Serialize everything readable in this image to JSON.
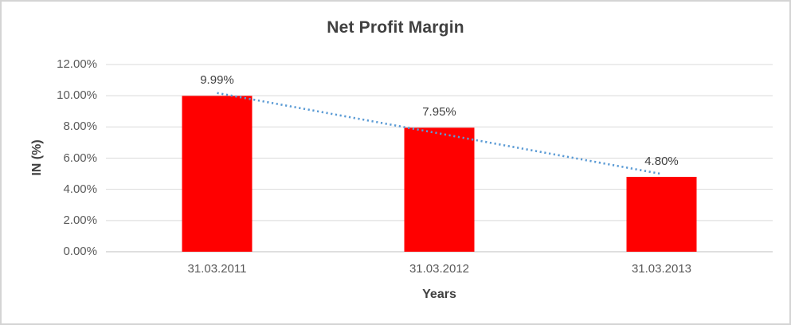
{
  "chart_data": {
    "type": "bar",
    "title": "Net Profit Margin",
    "xlabel": "Years",
    "ylabel": "IN (%)",
    "categories": [
      "31.03.2011",
      "31.03.2012",
      "31.03.2013"
    ],
    "values": [
      9.99,
      7.95,
      4.8
    ],
    "data_labels": [
      "9.99%",
      "7.95%",
      "4.80%"
    ],
    "ylim": [
      0,
      12
    ],
    "ytick_step": 2,
    "ytick_labels": [
      "0.00%",
      "2.00%",
      "4.00%",
      "6.00%",
      "8.00%",
      "10.00%",
      "12.00%"
    ],
    "grid": true,
    "legend": false,
    "series_name": "Net Profit Margin",
    "trendline": {
      "type": "linear",
      "style": "dotted"
    }
  },
  "colors": {
    "bar": "#FF0000",
    "trendline": "#5B9BD5",
    "gridline": "#D9D9D9",
    "axis_line": "#BFBFBF",
    "title_text": "#404040",
    "tick_text": "#595959"
  }
}
